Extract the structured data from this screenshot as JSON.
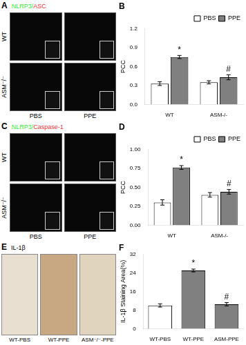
{
  "chart_data": [
    {
      "type": "image",
      "title": "A",
      "subtitle": [
        {
          "text": "NLRP3/",
          "color": "#33ee33"
        },
        {
          "text": "ASC",
          "color": "#ee3333"
        }
      ],
      "rows": [
        "WT",
        "ASM⁻/⁻"
      ],
      "categories": [
        "PBS",
        "PPE"
      ]
    },
    {
      "type": "bar",
      "title": "B",
      "ylabel": "PCC",
      "categories": [
        "WT",
        "ASM-/-"
      ],
      "series": [
        {
          "name": "PBS",
          "color": "white",
          "values": [
            0.33,
            0.35
          ],
          "errors": [
            0.03,
            0.025
          ]
        },
        {
          "name": "PPE",
          "color": "#808080",
          "values": [
            0.75,
            0.43
          ],
          "errors": [
            0.025,
            0.04
          ]
        }
      ],
      "ylim": [
        0,
        1.2
      ],
      "yticks": [
        {
          "value": 0,
          "label": "0.0"
        },
        0.3,
        0.6,
        0.9,
        1.2
      ],
      "grid": false,
      "legend": "upper right",
      "annotations": [
        {
          "text": "*",
          "category": "WT",
          "series": "PPE"
        },
        {
          "text": "#",
          "category": "ASM-/-",
          "series": "PPE"
        }
      ]
    },
    {
      "type": "image",
      "title": "C",
      "subtitle": [
        {
          "text": "NLRP3/",
          "color": "#33ee33"
        },
        {
          "text": "Caspase-1",
          "color": "#ee3333"
        }
      ],
      "rows": [
        "WT",
        "ASM⁻/⁻"
      ],
      "categories": [
        "PBS",
        "PPE"
      ]
    },
    {
      "type": "bar",
      "title": "D",
      "ylabel": "PCC",
      "categories": [
        "WT",
        "ASM-/-"
      ],
      "series": [
        {
          "name": "PBS",
          "color": "white",
          "values": [
            0.3,
            0.4
          ],
          "errors": [
            0.035,
            0.03
          ]
        },
        {
          "name": "PPE",
          "color": "#808080",
          "values": [
            0.76,
            0.44
          ],
          "errors": [
            0.025,
            0.03
          ]
        }
      ],
      "ylim": [
        0,
        1.0
      ],
      "yticks": [
        {
          "value": 0,
          "label": "0.00"
        },
        0.25,
        {
          "value": 0.5,
          "label": "0.50"
        },
        0.75,
        {
          "value": 1.0,
          "label": "1.00"
        }
      ],
      "grid": false,
      "legend": "upper right",
      "annotations": [
        {
          "text": "*",
          "category": "WT",
          "series": "PPE"
        },
        {
          "text": "#",
          "category": "ASM-/-",
          "series": "PPE"
        }
      ]
    },
    {
      "type": "image",
      "title": "E",
      "subtitle": [
        {
          "text": "IL-1β",
          "color": "black"
        }
      ],
      "categories": [
        "WT-PBS",
        "WT-PPE",
        "ASM⁻/⁻-PPE"
      ],
      "colors": [
        "#e8dfd0",
        "#c8a882",
        "#e0d4bf"
      ]
    },
    {
      "type": "bar",
      "title": "F",
      "ylabel": "IL-1β Staining Area(%)",
      "categories": [
        "WT-PBS",
        "WT-PPE",
        "ASM-PPE"
      ],
      "values": [
        10.0,
        25.0,
        10.5
      ],
      "errors": [
        0.7,
        0.6,
        0.7
      ],
      "colors": [
        "white",
        "#808080",
        "#808080"
      ],
      "ylim": [
        0,
        32
      ],
      "yticks": [
        0,
        8,
        16,
        24,
        32
      ],
      "grid": false,
      "annotations": [
        {
          "text": "*",
          "category": "WT-PPE"
        },
        {
          "text": "#",
          "category": "ASM-PPE"
        }
      ]
    }
  ]
}
